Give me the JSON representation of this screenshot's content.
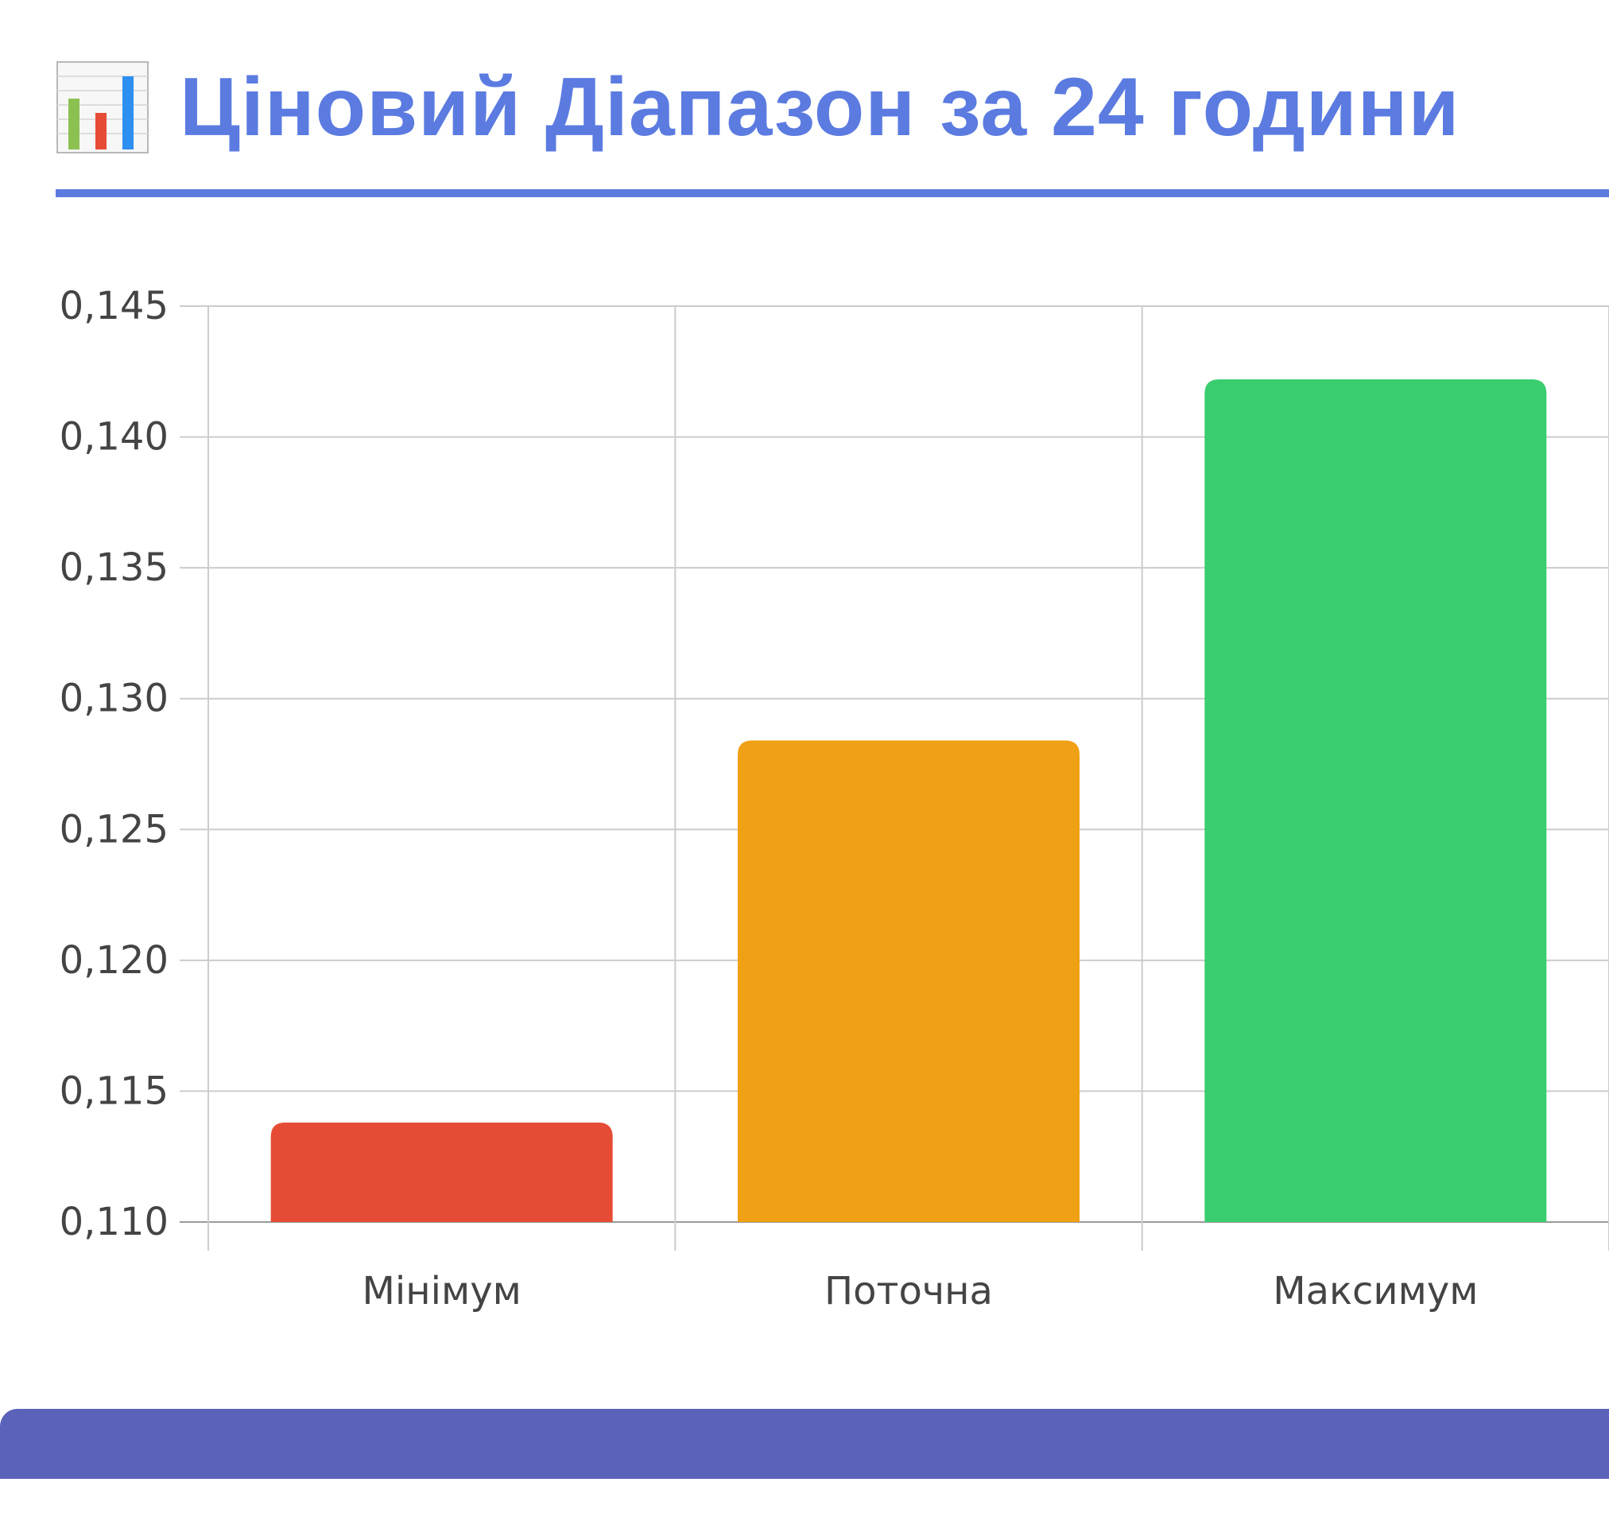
{
  "header": {
    "title": "Ціновий Діапазон за 24 години",
    "icon": "bar-chart-icon"
  },
  "colors": {
    "title": "#5b7be0",
    "rule": "#5b7be0",
    "footer_band": "#5a62ba",
    "grid": "#cccccc"
  },
  "chart_data": {
    "type": "bar",
    "categories": [
      "Мінімум",
      "Поточна",
      "Максимум"
    ],
    "values": [
      0.1138,
      0.1284,
      0.1422
    ],
    "colors": [
      "#e64c35",
      "#efa014",
      "#3acd6f"
    ],
    "ylim": [
      0.11,
      0.145
    ],
    "yticks": [
      "0,110",
      "0,115",
      "0,120",
      "0,125",
      "0,130",
      "0,135",
      "0,140",
      "0,145"
    ],
    "grid": true
  }
}
